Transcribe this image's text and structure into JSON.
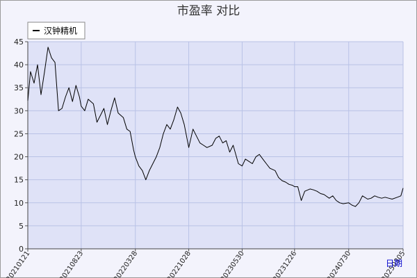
{
  "chart_data": {
    "type": "line",
    "title": "市盈率  对比",
    "xlabel": "日期",
    "ylabel": "",
    "ylim": [
      0,
      45
    ],
    "yticks": [
      0,
      5,
      10,
      15,
      20,
      25,
      30,
      35,
      40,
      45
    ],
    "xticks": [
      "20210121",
      "20210823",
      "20220328",
      "20221028",
      "20230530",
      "20231226",
      "20240730",
      "20250305"
    ],
    "grid": true,
    "legend_position": "top-left",
    "colors": {
      "background": "#f3f3fc",
      "plot_area": "#dfe2f7",
      "grid": "#b9c2e6",
      "line": "#000000",
      "xlabel": "#0000cc"
    },
    "series": [
      {
        "name": "汉钟精机",
        "x": [
          "20210121",
          "20210201",
          "20210215",
          "20210301",
          "20210315",
          "20210329",
          "20210412",
          "20210426",
          "20210510",
          "20210524",
          "20210607",
          "20210621",
          "20210705",
          "20210719",
          "20210802",
          "20210816",
          "20210823",
          "20210906",
          "20210920",
          "20211011",
          "20211025",
          "20211108",
          "20211122",
          "20211206",
          "20211220",
          "20220104",
          "20220118",
          "20220208",
          "20220222",
          "20220307",
          "20220321",
          "20220328",
          "20220411",
          "20220425",
          "20220509",
          "20220523",
          "20220606",
          "20220620",
          "20220704",
          "20220718",
          "20220801",
          "20220815",
          "20220829",
          "20220913",
          "20220926",
          "20221010",
          "20221028",
          "20221114",
          "20221128",
          "20221212",
          "20221226",
          "20230109",
          "20230130",
          "20230213",
          "20230227",
          "20230313",
          "20230327",
          "20230410",
          "20230424",
          "20230515",
          "20230530",
          "20230612",
          "20230626",
          "20230710",
          "20230724",
          "20230807",
          "20230821",
          "20230904",
          "20230918",
          "20231009",
          "20231023",
          "20231106",
          "20231120",
          "20231204",
          "20231218",
          "20231226",
          "20240108",
          "20240122",
          "20240205",
          "20240226",
          "20240311",
          "20240325",
          "20240408",
          "20240422",
          "20240513",
          "20240527",
          "20240610",
          "20240624",
          "20240708",
          "20240730",
          "20240812",
          "20240826",
          "20240909",
          "20240923",
          "20241014",
          "20241028",
          "20241111",
          "20241125",
          "20241209",
          "20241223",
          "20250106",
          "20250120",
          "20250210",
          "20250224",
          "20250305"
        ],
        "values": [
          32.2,
          38.5,
          36.0,
          40.0,
          33.5,
          38.5,
          43.8,
          41.5,
          40.5,
          30.0,
          30.5,
          33.0,
          35.0,
          32.0,
          35.5,
          33.0,
          31.0,
          30.0,
          32.5,
          31.5,
          27.5,
          29.0,
          30.5,
          27.0,
          30.0,
          32.8,
          29.5,
          28.5,
          26.0,
          25.5,
          21.5,
          20.0,
          18.0,
          17.0,
          15.0,
          17.0,
          18.5,
          20.0,
          22.0,
          25.0,
          27.0,
          26.0,
          28.0,
          30.8,
          29.5,
          27.0,
          22.0,
          26.0,
          24.5,
          23.0,
          22.5,
          22.0,
          22.5,
          24.0,
          24.5,
          23.0,
          23.5,
          21.0,
          22.5,
          18.5,
          18.0,
          19.5,
          19.0,
          18.5,
          20.0,
          20.5,
          19.5,
          18.5,
          17.5,
          17.0,
          15.5,
          14.8,
          14.5,
          14.0,
          13.8,
          13.5,
          13.5,
          10.5,
          12.5,
          13.0,
          12.8,
          12.5,
          12.0,
          11.8,
          11.0,
          11.5,
          10.5,
          10.0,
          9.8,
          10.0,
          9.5,
          9.2,
          10.0,
          11.5,
          10.8,
          11.0,
          11.5,
          11.2,
          11.0,
          11.2,
          11.0,
          10.8,
          11.2,
          11.5,
          13.2
        ]
      }
    ]
  }
}
